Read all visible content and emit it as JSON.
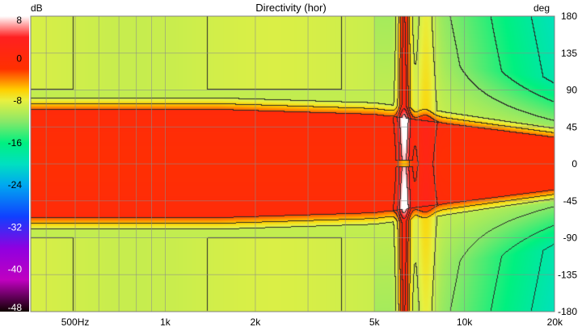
{
  "chart_data": {
    "type": "heatmap",
    "title": "Directivity (hor)",
    "x_axis": {
      "scale": "log",
      "range_hz": [
        355,
        20000
      ],
      "ticks": [
        {
          "value": 500,
          "label": "500Hz"
        },
        {
          "value": 1000,
          "label": "1k"
        },
        {
          "value": 2000,
          "label": "2k"
        },
        {
          "value": 5000,
          "label": "5k"
        },
        {
          "value": 10000,
          "label": "10k"
        },
        {
          "value": 20000,
          "label": "20k"
        }
      ]
    },
    "y_axis": {
      "unit_label": "deg",
      "range": [
        -180,
        180
      ],
      "ticks": [
        "180",
        "135",
        "90",
        "45",
        "0",
        "-45",
        "-90",
        "-135",
        "-180"
      ]
    },
    "color_scale": {
      "unit_label": "dB",
      "range": [
        -48,
        8
      ],
      "ticks": [
        "8",
        "0",
        "-8",
        "-16",
        "-24",
        "-32",
        "-40",
        "-48"
      ],
      "stops": [
        {
          "db": 8,
          "color": "#ffffff"
        },
        {
          "db": 4,
          "color": "#ff2020"
        },
        {
          "db": -2,
          "color": "#ff3000"
        },
        {
          "db": -6,
          "color": "#ffd000"
        },
        {
          "db": -8,
          "color": "#e8f040"
        },
        {
          "db": -12,
          "color": "#88e868"
        },
        {
          "db": -16,
          "color": "#00f080"
        },
        {
          "db": -20,
          "color": "#00e0c0"
        },
        {
          "db": -24,
          "color": "#00a8f0"
        },
        {
          "db": -30,
          "color": "#1040ff"
        },
        {
          "db": -36,
          "color": "#9000e0"
        },
        {
          "db": -42,
          "color": "#c000c0"
        },
        {
          "db": -48,
          "color": "#100000"
        }
      ]
    },
    "grid": true,
    "contours": true,
    "features": {
      "on_axis_peak_notch_hz": 6300
    }
  }
}
